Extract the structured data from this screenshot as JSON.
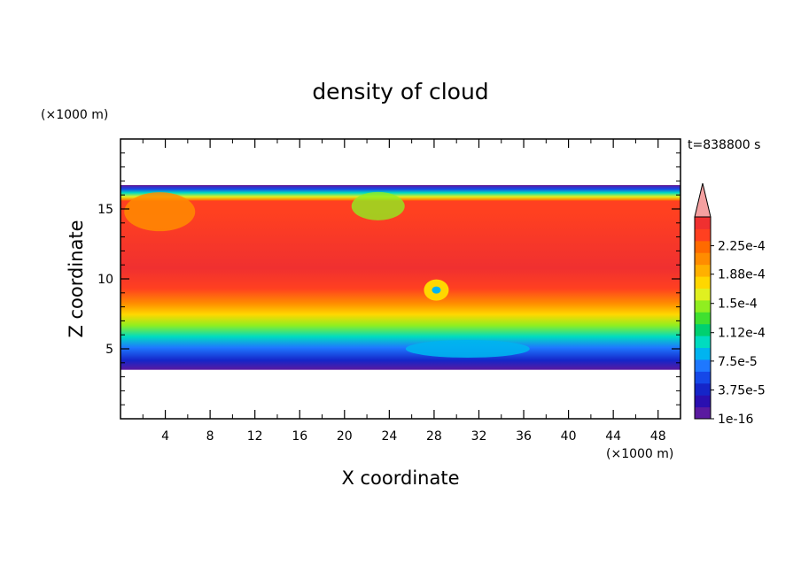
{
  "chart_data": {
    "type": "heatmap",
    "title": "density of cloud",
    "xlabel": "X coordinate",
    "ylabel": "Z coordinate",
    "x_unit": "(×1000 m)",
    "y_unit": "(×1000 m)",
    "time_label": "t=838800 s",
    "xlim": [
      0,
      50
    ],
    "ylim": [
      0,
      20
    ],
    "x_ticks": [
      "4",
      "8",
      "12",
      "16",
      "20",
      "24",
      "28",
      "32",
      "36",
      "40",
      "44",
      "48"
    ],
    "x_tick_values": [
      4,
      8,
      12,
      16,
      20,
      24,
      28,
      32,
      36,
      40,
      44,
      48
    ],
    "y_ticks": [
      "5",
      "10",
      "15"
    ],
    "y_tick_values": [
      5,
      10,
      15
    ],
    "cloud_base_km": 3.5,
    "cloud_top_km": 16.7,
    "colorbar": {
      "labels": [
        "1e-16",
        "3.75e-5",
        "7.5e-5",
        "1.12e-4",
        "1.5e-4",
        "1.88e-4",
        "2.25e-4"
      ],
      "label_values": [
        0,
        3.75e-05,
        7.5e-05,
        0.000112,
        0.00015,
        0.000188,
        0.000225
      ],
      "max_value": 0.0002625,
      "extend": "max",
      "colors": [
        "#5a1aa0",
        "#2a0fb0",
        "#1525c8",
        "#1548e8",
        "#1e78ff",
        "#00b4f0",
        "#00dcc0",
        "#00d070",
        "#40e030",
        "#90ee20",
        "#e0f020",
        "#ffd700",
        "#ffb000",
        "#ff8c00",
        "#ff6a00",
        "#ff4020",
        "#f03030"
      ],
      "extend_color": "#f4a0a0"
    }
  }
}
